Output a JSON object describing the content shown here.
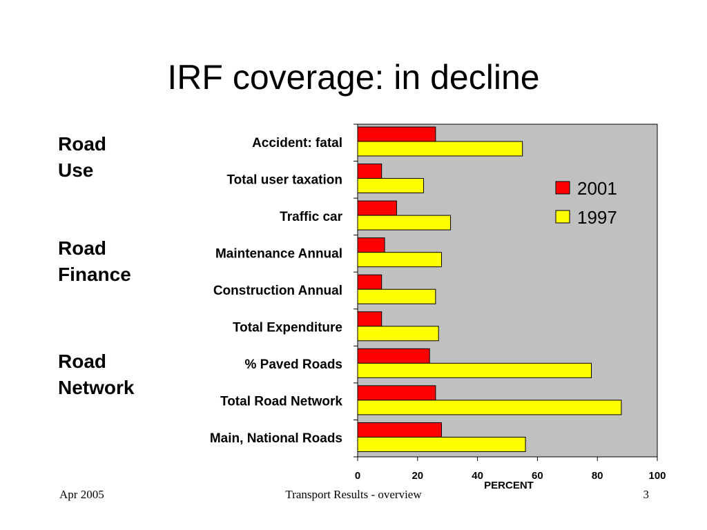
{
  "slide": {
    "title": "IRF coverage: in decline",
    "groups": [
      "Road\nUse",
      "Road\nFinance",
      "Road\nNetwork"
    ]
  },
  "footer": {
    "date": "Apr 2005",
    "center": "Transport Results - overview",
    "page": "3"
  },
  "colors": {
    "plot_bg": "#c0c0c0",
    "series_2001": "#ff0000",
    "series_1997": "#ffff00"
  },
  "chart_data": {
    "type": "bar",
    "orientation": "horizontal",
    "categories": [
      "Accident: fatal",
      "Total user taxation",
      "Traffic car",
      "Maintenance Annual",
      "Construction Annual",
      "Total Expenditure",
      "% Paved Roads",
      "Total Road Network",
      "Main, National Roads"
    ],
    "series": [
      {
        "name": "2001",
        "color": "#ff0000",
        "values": [
          26,
          8,
          13,
          9,
          8,
          8,
          24,
          26,
          28
        ]
      },
      {
        "name": "1997",
        "color": "#ffff00",
        "values": [
          55,
          22,
          31,
          28,
          26,
          27,
          78,
          88,
          56
        ]
      }
    ],
    "xlabel": "PERCENT",
    "xlim": [
      0,
      100
    ],
    "xticks": [
      "0",
      "20",
      "40",
      "60",
      "80",
      "100"
    ],
    "grid": false,
    "legend": "top-right"
  }
}
